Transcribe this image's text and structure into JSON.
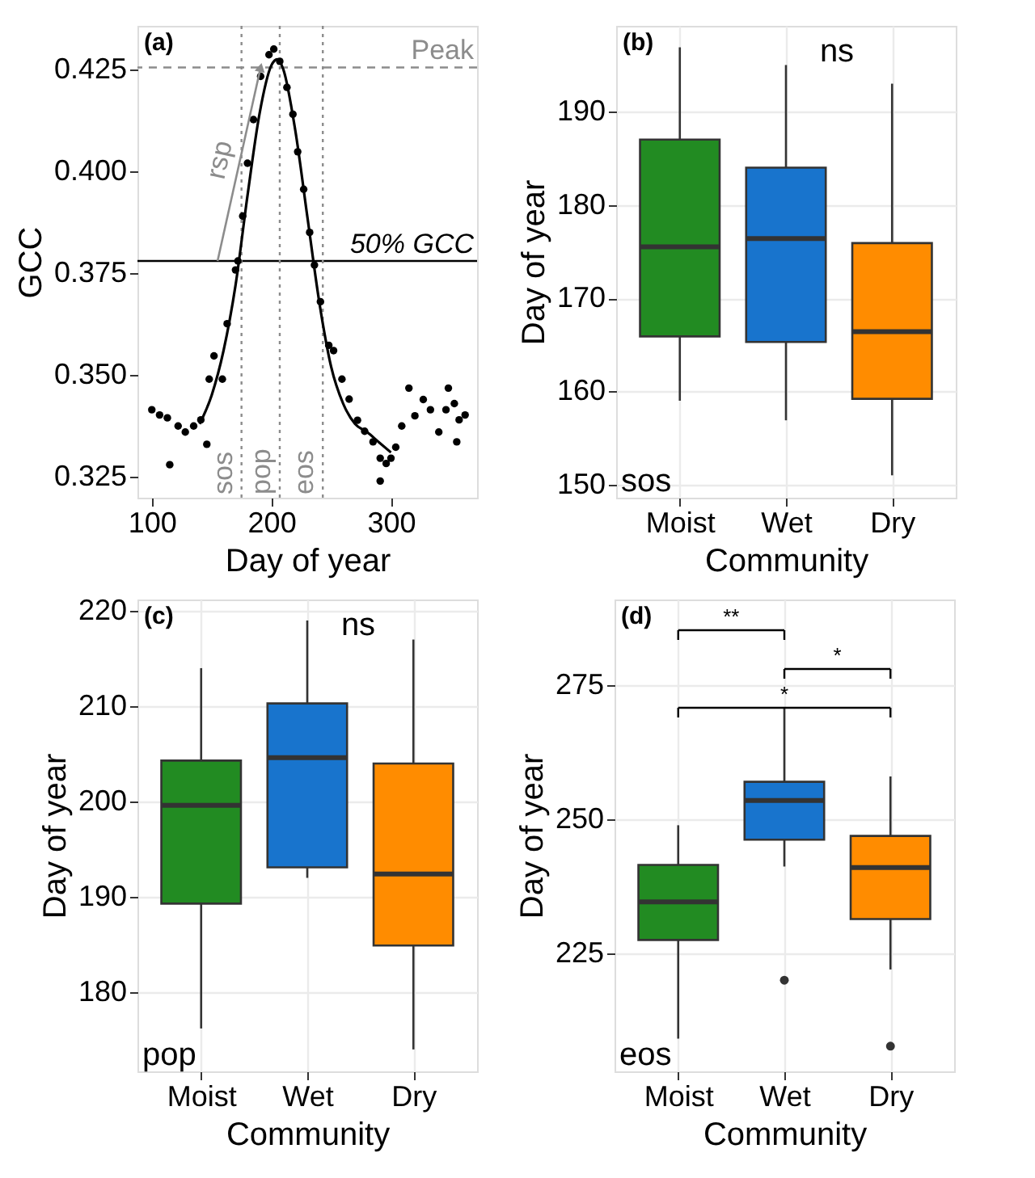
{
  "chart_data": [
    {
      "type": "scatter",
      "xlabel": "Day of year",
      "ylabel": "GCC",
      "xlim": [
        88,
        372
      ],
      "ylim": [
        0.3199,
        0.4357
      ],
      "xticks": [
        100,
        200,
        300
      ],
      "yticks": [
        {
          "value": 0.325,
          "label": "0.325"
        },
        {
          "value": 0.35,
          "label": "0.350"
        },
        {
          "value": 0.375,
          "label": "0.375"
        },
        {
          "value": 0.4,
          "label": "0.400"
        },
        {
          "value": 0.425,
          "label": "0.425"
        }
      ],
      "grid": false,
      "series": [
        {
          "type": "scatter",
          "marker": "circle",
          "color": "#000000",
          "x": [
            100,
            106.5,
            113,
            115,
            122,
            128,
            135,
            141,
            146,
            148,
            152,
            159,
            163,
            170,
            172,
            176,
            180,
            185,
            191,
            198,
            202,
            207,
            213,
            218,
            222,
            227,
            232,
            236,
            241,
            248,
            252,
            259,
            265,
            272,
            278,
            285,
            291,
            296,
            300,
            304,
            309,
            315,
            320,
            327,
            333,
            340,
            346,
            353,
            357,
            362,
            355,
            291,
            348
          ],
          "values": [
            0.3415,
            0.3402,
            0.3395,
            0.328,
            0.3375,
            0.336,
            0.3375,
            0.339,
            0.333,
            0.349,
            0.3547,
            0.349,
            0.3626,
            0.3758,
            0.378,
            0.389,
            0.402,
            0.4127,
            0.4233,
            0.4286,
            0.43,
            0.427,
            0.4206,
            0.414,
            0.4048,
            0.3956,
            0.385,
            0.377,
            0.368,
            0.3573,
            0.356,
            0.349,
            0.3441,
            0.3389,
            0.3362,
            0.3336,
            0.3296,
            0.3283,
            0.3296,
            0.3323,
            0.3375,
            0.3468,
            0.34,
            0.344,
            0.3415,
            0.336,
            0.3415,
            0.343,
            0.339,
            0.3402,
            0.3336,
            0.324,
            0.3468
          ]
        },
        {
          "type": "line",
          "color": "#000000",
          "x": [
            140,
            150,
            160,
            170,
            180,
            190,
            200,
            205,
            210,
            220,
            230,
            240,
            250,
            260,
            270,
            280,
            290,
            300
          ],
          "values": [
            0.338,
            0.345,
            0.356,
            0.372,
            0.394,
            0.414,
            0.426,
            0.4275,
            0.425,
            0.41,
            0.389,
            0.368,
            0.352,
            0.343,
            0.338,
            0.336,
            0.3335,
            0.331
          ]
        }
      ],
      "ref_lines": [
        {
          "axis": "y",
          "value": 0.4255,
          "label": "Peak",
          "color": "#8c8c8c",
          "line_style": "dashed"
        },
        {
          "axis": "y",
          "value": 0.378,
          "label": "50% GCC",
          "color": "#000000",
          "line_style": "solid"
        },
        {
          "axis": "x",
          "value": 175,
          "label": "sos",
          "color": "#8c8c8c",
          "line_style": "dotted"
        },
        {
          "axis": "x",
          "value": 207,
          "label": "pop",
          "color": "#8c8c8c",
          "line_style": "dotted"
        },
        {
          "axis": "x",
          "value": 243,
          "label": "eos",
          "color": "#8c8c8c",
          "line_style": "dotted"
        }
      ],
      "annotations": [
        "(a)",
        "rsp"
      ]
    },
    {
      "type": "box",
      "xlabel": "Community",
      "ylabel": "Day of year",
      "categories": [
        "Moist",
        "Wet",
        "Dry"
      ],
      "colors": [
        "#228b22",
        "#1874cd",
        "#ff8c00"
      ],
      "ylim": [
        148.6,
        199.2
      ],
      "yticks": [
        150,
        160,
        170,
        180,
        190
      ],
      "grid": true,
      "boxes": [
        {
          "low": 159.0,
          "q1": 165.9,
          "median": 175.5,
          "q3": 187,
          "high": 196.9
        },
        {
          "low": 156.9,
          "q1": 165.3,
          "median": 176.4,
          "q3": 184,
          "high": 195
        },
        {
          "low": 151,
          "q1": 159.2,
          "median": 166.4,
          "q3": 175.9,
          "high": 193
        }
      ],
      "annotations": [
        "(b)",
        "ns",
        "sos"
      ]
    },
    {
      "type": "box",
      "xlabel": "Community",
      "ylabel": "Day of year",
      "categories": [
        "Moist",
        "Wet",
        "Dry"
      ],
      "colors": [
        "#228b22",
        "#1874cd",
        "#ff8c00"
      ],
      "ylim": [
        171.7,
        221.2
      ],
      "yticks": [
        180,
        190,
        200,
        210,
        220
      ],
      "grid": true,
      "boxes": [
        {
          "low": 176.2,
          "q1": 189.3,
          "median": 199.6,
          "q3": 204.3,
          "high": 214
        },
        {
          "low": 192,
          "q1": 193.1,
          "median": 204.6,
          "q3": 210.3,
          "high": 219
        },
        {
          "low": 174,
          "q1": 184.9,
          "median": 192.4,
          "q3": 204,
          "high": 217
        }
      ],
      "annotations": [
        "(c)",
        "ns",
        "pop"
      ]
    },
    {
      "type": "box",
      "xlabel": "Community",
      "ylabel": "Day of year",
      "categories": [
        "Moist",
        "Wet",
        "Dry"
      ],
      "colors": [
        "#228b22",
        "#1874cd",
        "#ff8c00"
      ],
      "ylim": [
        203,
        291
      ],
      "yticks": [
        225,
        250,
        275
      ],
      "grid": true,
      "boxes": [
        {
          "low": 209.1,
          "q1": 227.5,
          "median": 234.6,
          "q3": 241.5,
          "high": 248.9
        },
        {
          "low": 241.2,
          "q1": 246.2,
          "median": 253.5,
          "q3": 257,
          "high": 270.9,
          "outliers": [
            220
          ]
        },
        {
          "low": 222,
          "q1": 231.4,
          "median": 241,
          "q3": 246.9,
          "high": 258,
          "outliers": [
            207.7
          ]
        }
      ],
      "annotations": [
        "(d)",
        "**",
        "*",
        "*",
        "eos"
      ]
    }
  ]
}
